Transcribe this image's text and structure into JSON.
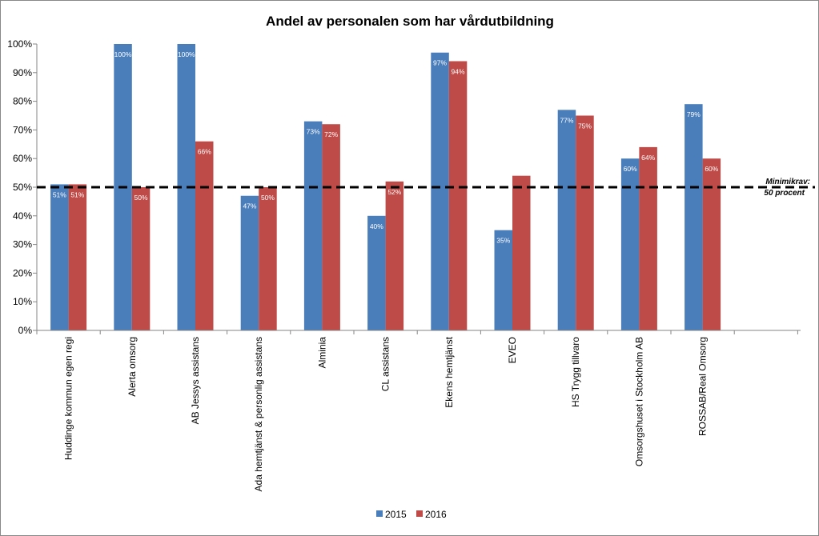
{
  "chart_data": {
    "type": "bar",
    "title": "Andel av personalen som har vårdutbildning",
    "categories": [
      "Huddinge kommun egen regi",
      "Alerta omsorg",
      "AB Jessys assistans",
      "Ada hemtjänst & personlig assistans",
      "Alminia",
      "CL assistans",
      "Ekens hemtjänst",
      "EVEO",
      "HS Trygg tillvaro",
      "Omsorgshuset i Stockholm AB",
      "ROSSAB/Real Omsorg"
    ],
    "series": [
      {
        "name": "2015",
        "color": "#4a7ebb",
        "values": [
          51,
          100,
          100,
          47,
          73,
          40,
          97,
          35,
          77,
          60,
          79
        ],
        "labels": [
          "51%",
          "100%",
          "100%",
          "47%",
          "73%",
          "40%",
          "97%",
          "35%",
          "77%",
          "60%",
          "79%"
        ]
      },
      {
        "name": "2016",
        "color": "#be4b48",
        "values": [
          51,
          50,
          66,
          50,
          72,
          52,
          94,
          54,
          75,
          64,
          60
        ],
        "labels": [
          "51%",
          "50%",
          "66%",
          "50%",
          "72%",
          "52%",
          "94%",
          "",
          "75%",
          "64%",
          "60%"
        ]
      }
    ],
    "ylim": [
      0,
      100
    ],
    "yticks": [
      "0%",
      "10%",
      "20%",
      "30%",
      "40%",
      "50%",
      "60%",
      "70%",
      "80%",
      "90%",
      "100%"
    ],
    "reference_line": {
      "value": 50,
      "label_line1": "Minimikrav:",
      "label_line2": "50 procent",
      "style": "dashed"
    },
    "grid": false,
    "legend": "bottom-center"
  }
}
